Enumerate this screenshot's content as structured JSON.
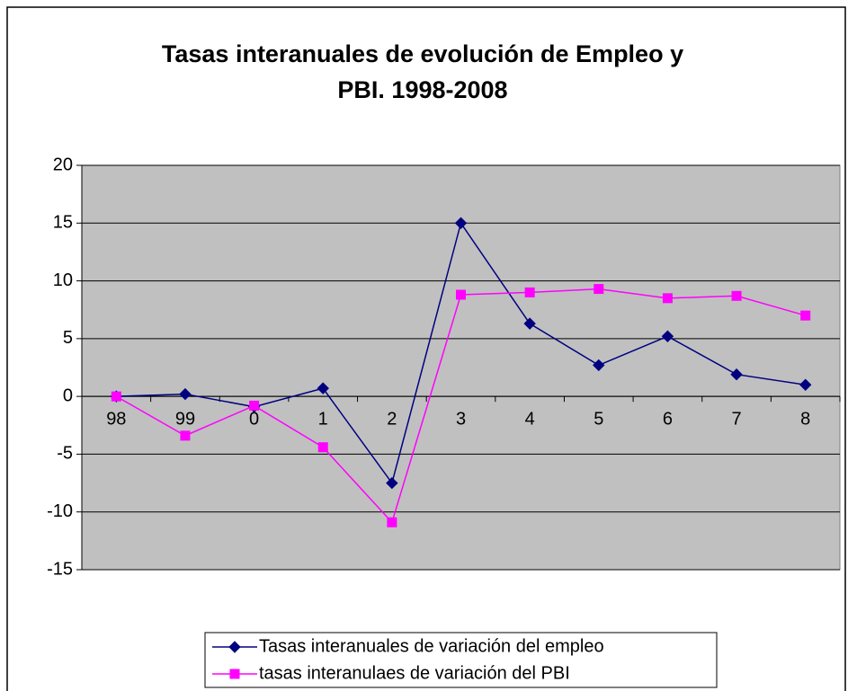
{
  "chart_data": {
    "type": "line",
    "title": "Tasas interanuales de evolución de Empleo y PBI. 1998-2008",
    "categories": [
      "98",
      "99",
      "0",
      "1",
      "2",
      "3",
      "4",
      "5",
      "6",
      "7",
      "8"
    ],
    "series": [
      {
        "name": "Tasas interanuales de variación del empleo",
        "color": "#000080",
        "marker": "diamond",
        "values": [
          0,
          0.2,
          -0.9,
          0.7,
          -7.5,
          15,
          6.3,
          2.7,
          5.2,
          1.9,
          1.0
        ]
      },
      {
        "name": "tasas interanulaes de variación del PBI",
        "color": "#ff00ff",
        "marker": "square",
        "values": [
          0,
          -3.4,
          -0.8,
          -4.4,
          -10.9,
          8.8,
          9.0,
          9.3,
          8.5,
          8.7,
          7.0
        ]
      }
    ],
    "ylim": [
      -15,
      20
    ],
    "yticks": [
      -15,
      -10,
      -5,
      0,
      5,
      10,
      15,
      20
    ],
    "grid": true,
    "legend": "bottom"
  }
}
